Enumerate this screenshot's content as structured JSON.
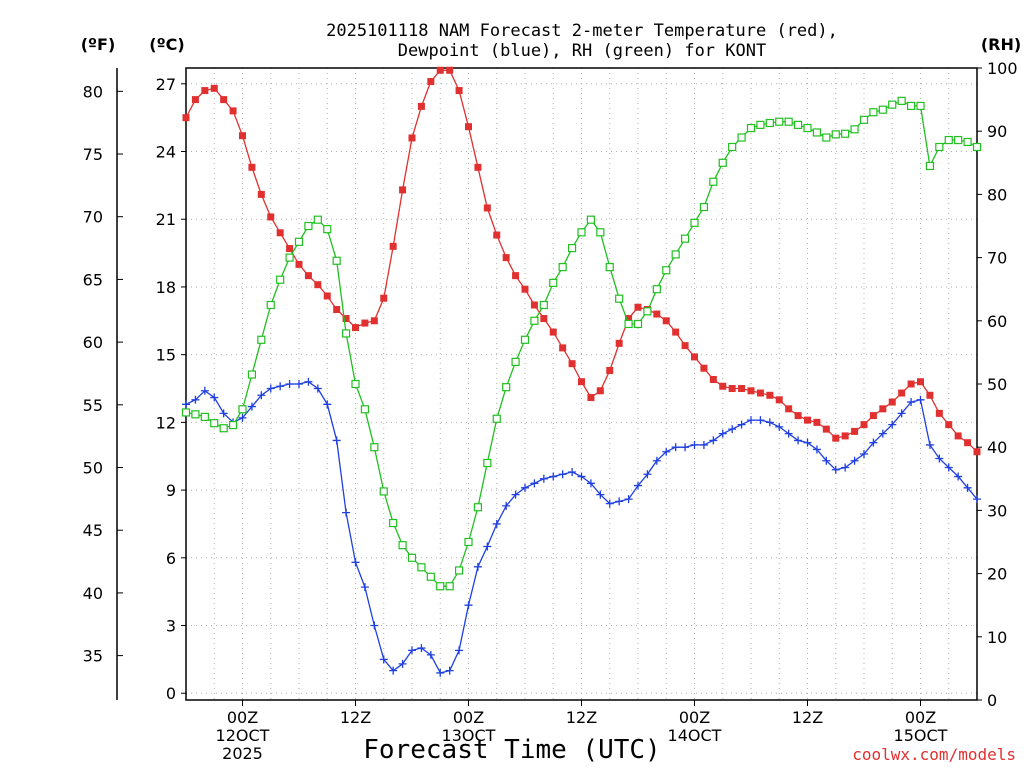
{
  "chart_data": {
    "type": "line",
    "title_line1": "2025101118 NAM Forecast 2-meter Temperature (red),",
    "title_line2": "Dewpoint (blue), RH (green) for KONT",
    "xlabel": "Forecast Time (UTC)",
    "credit": "coolwx.com/models",
    "credit_color": "#e03030",
    "units": {
      "fahrenheit": "(ºF)",
      "celsius": "(ºC)",
      "rh": "(RH)"
    },
    "grid": true,
    "x_hours_from": "2025101118",
    "x_range_hours": [
      0,
      84
    ],
    "x_ticks": [
      {
        "h": 6,
        "label": "00Z",
        "sub": "12OCT",
        "sub2": "2025"
      },
      {
        "h": 18,
        "label": "12Z",
        "sub": "",
        "sub2": ""
      },
      {
        "h": 30,
        "label": "00Z",
        "sub": "13OCT",
        "sub2": ""
      },
      {
        "h": 42,
        "label": "12Z",
        "sub": "",
        "sub2": ""
      },
      {
        "h": 54,
        "label": "00Z",
        "sub": "14OCT",
        "sub2": ""
      },
      {
        "h": 66,
        "label": "12Z",
        "sub": "",
        "sub2": ""
      },
      {
        "h": 78,
        "label": "00Z",
        "sub": "15OCT",
        "sub2": ""
      }
    ],
    "y_celsius": {
      "range": [
        -0.3,
        27.7
      ],
      "ticks": [
        0,
        3,
        6,
        9,
        12,
        15,
        18,
        21,
        24,
        27
      ]
    },
    "y_fahrenheit": {
      "ticks": [
        35,
        40,
        45,
        50,
        55,
        60,
        65,
        70,
        75,
        80
      ]
    },
    "y_rh": {
      "range": [
        0,
        100
      ],
      "ticks": [
        0,
        10,
        20,
        30,
        40,
        50,
        60,
        70,
        80,
        90,
        100
      ]
    },
    "series": [
      {
        "name": "Temperature (red)",
        "axis": "celsius",
        "color": "#e03030",
        "marker": "filled-square",
        "values": [
          25.5,
          26.3,
          26.7,
          26.8,
          26.3,
          25.8,
          24.7,
          23.3,
          22.1,
          21.1,
          20.4,
          19.7,
          19.0,
          18.5,
          18.1,
          17.6,
          17.0,
          16.6,
          16.2,
          16.4,
          16.5,
          17.5,
          19.8,
          22.3,
          24.6,
          26.0,
          27.1,
          27.6,
          27.6,
          26.7,
          25.1,
          23.3,
          21.5,
          20.3,
          19.3,
          18.5,
          17.9,
          17.2,
          16.6,
          16.0,
          15.3,
          14.6,
          13.8,
          13.1,
          13.4,
          14.3,
          15.5,
          16.6,
          17.1,
          17.0,
          16.8,
          16.5,
          16.0,
          15.4,
          14.9,
          14.4,
          13.9,
          13.6,
          13.5,
          13.5,
          13.4,
          13.3,
          13.2,
          13.0,
          12.6,
          12.3,
          12.1,
          12.0,
          11.7,
          11.3,
          11.4,
          11.6,
          11.9,
          12.3,
          12.6,
          12.9,
          13.3,
          13.7,
          13.8,
          13.2,
          12.4,
          11.9,
          11.4,
          11.1,
          10.7
        ]
      },
      {
        "name": "Dewpoint (blue)",
        "axis": "celsius",
        "color": "#2040e0",
        "marker": "plus",
        "values": [
          12.8,
          13.0,
          13.4,
          13.1,
          12.4,
          12.0,
          12.2,
          12.7,
          13.2,
          13.5,
          13.6,
          13.7,
          13.7,
          13.8,
          13.5,
          12.8,
          11.2,
          8.0,
          5.8,
          4.7,
          3.0,
          1.5,
          1.0,
          1.3,
          1.9,
          2.0,
          1.7,
          0.9,
          1.0,
          1.9,
          3.9,
          5.6,
          6.5,
          7.5,
          8.3,
          8.8,
          9.1,
          9.3,
          9.5,
          9.6,
          9.7,
          9.8,
          9.6,
          9.3,
          8.8,
          8.4,
          8.5,
          8.6,
          9.2,
          9.7,
          10.3,
          10.7,
          10.9,
          10.9,
          11.0,
          11.0,
          11.2,
          11.5,
          11.7,
          11.9,
          12.1,
          12.1,
          12.0,
          11.8,
          11.5,
          11.2,
          11.1,
          10.8,
          10.3,
          9.9,
          10.0,
          10.3,
          10.6,
          11.1,
          11.5,
          11.9,
          12.4,
          12.9,
          13.0,
          11.0,
          10.4,
          10.0,
          9.6,
          9.1,
          8.6
        ]
      },
      {
        "name": "RH (green)",
        "axis": "rh",
        "color": "#20c020",
        "marker": "open-square",
        "values": [
          45.5,
          45.2,
          44.8,
          43.8,
          43.0,
          43.5,
          46.0,
          51.5,
          57.0,
          62.5,
          66.5,
          70.0,
          72.5,
          75.0,
          76.0,
          74.5,
          69.5,
          58.0,
          50.0,
          46.0,
          40.0,
          33.0,
          28.0,
          24.5,
          22.5,
          21.0,
          19.5,
          18.0,
          18.0,
          20.5,
          25.0,
          30.5,
          37.5,
          44.5,
          49.5,
          53.5,
          57.0,
          60.0,
          62.5,
          66.0,
          68.5,
          71.5,
          74.0,
          76.0,
          74.0,
          68.5,
          63.5,
          59.5,
          59.5,
          61.5,
          65.0,
          68.0,
          70.5,
          73.0,
          75.5,
          78.0,
          82.0,
          85.0,
          87.5,
          89.0,
          90.5,
          91.0,
          91.3,
          91.5,
          91.5,
          91.0,
          90.5,
          89.8,
          89.0,
          89.5,
          89.6,
          90.3,
          91.8,
          93.0,
          93.4,
          94.2,
          94.8,
          94.0,
          94.0,
          84.5,
          87.5,
          88.6,
          88.6,
          88.3,
          87.5
        ]
      }
    ]
  }
}
